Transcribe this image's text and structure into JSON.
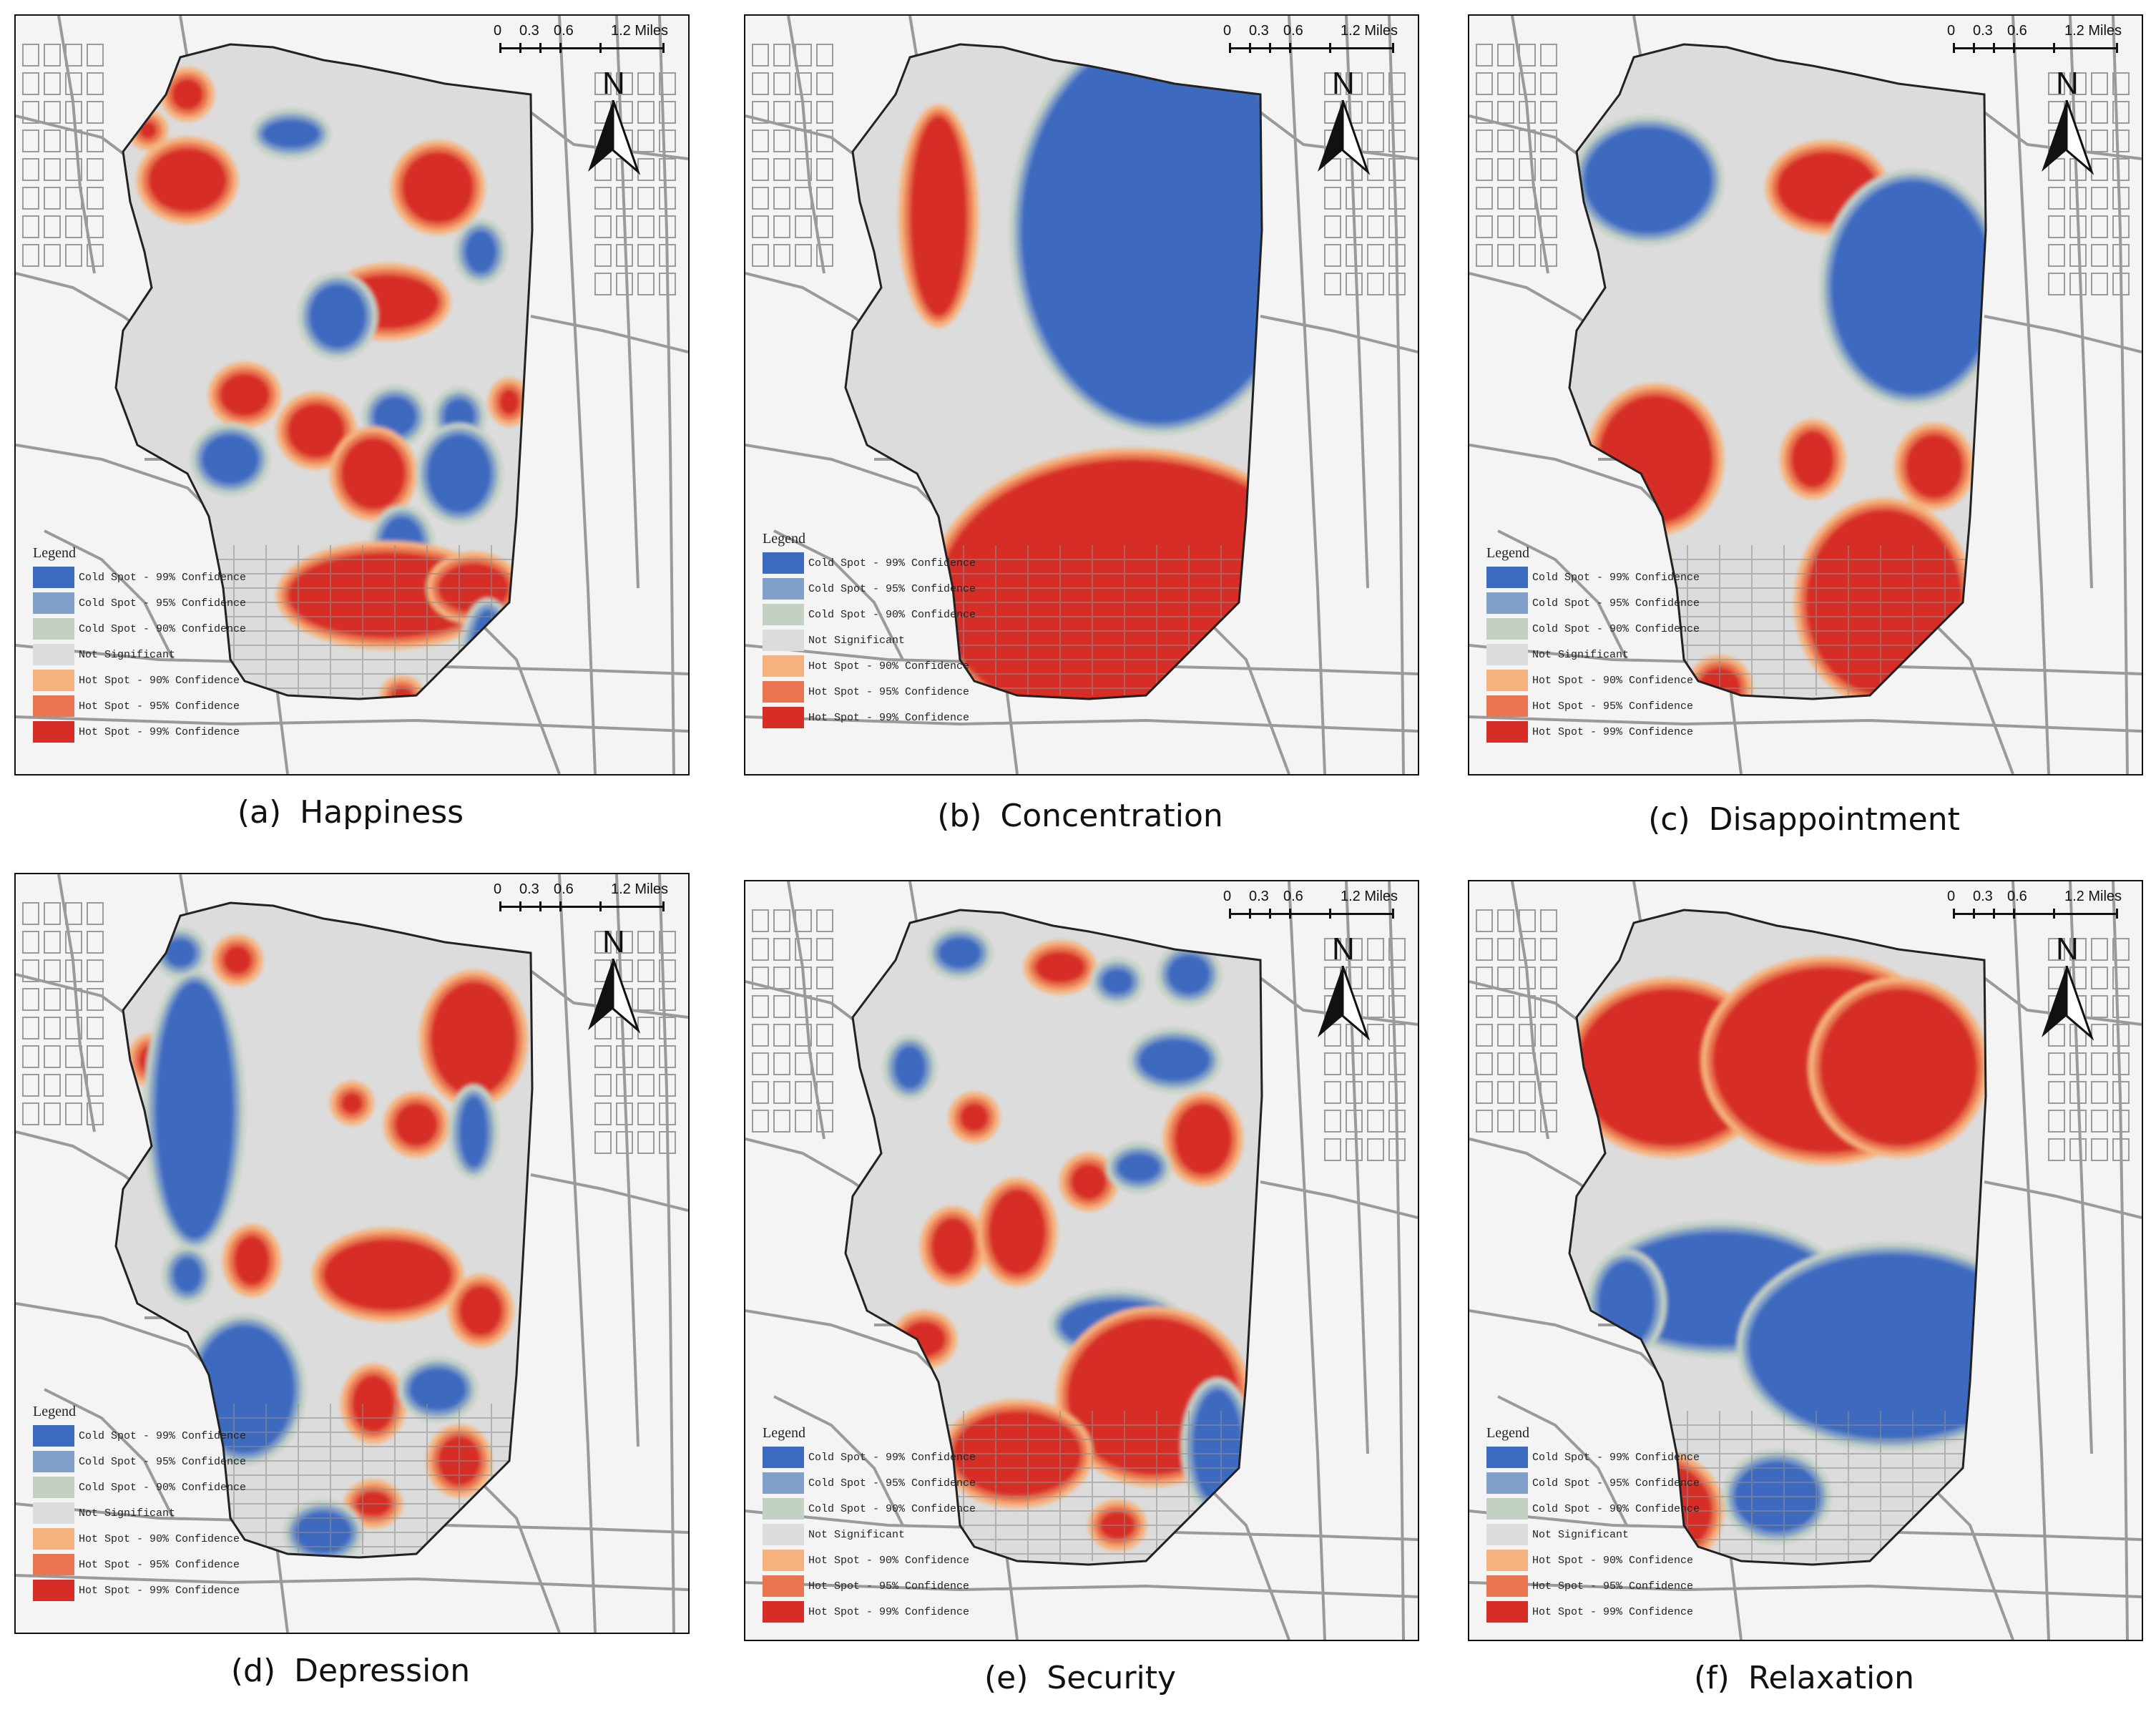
{
  "scale": {
    "ticks": [
      "0",
      "0.3",
      "0.6"
    ],
    "end_label": "1.2 Miles"
  },
  "north": "N",
  "legend": {
    "title": "Legend",
    "items": [
      {
        "label": "Cold Spot - 99% Confidence",
        "color": "#3c6bbf"
      },
      {
        "label": "Cold Spot - 95% Confidence",
        "color": "#7f9fc8"
      },
      {
        "label": "Cold Spot - 90% Confidence",
        "color": "#c3d0c4"
      },
      {
        "label": "Not Significant",
        "color": "#dcdcdc"
      },
      {
        "label": "Hot Spot - 90% Confidence",
        "color": "#f5b27e"
      },
      {
        "label": "Hot Spot - 95% Confidence",
        "color": "#ea7651"
      },
      {
        "label": "Hot Spot - 99% Confidence",
        "color": "#d62e26"
      }
    ]
  },
  "panels": [
    {
      "letter": "(a)",
      "title": "Happiness"
    },
    {
      "letter": "(b)",
      "title": "Concentration"
    },
    {
      "letter": "(c)",
      "title": "Disappointment"
    },
    {
      "letter": "(d)",
      "title": "Depression"
    },
    {
      "letter": "(e)",
      "title": "Security"
    },
    {
      "letter": "(f)",
      "title": "Relaxation"
    }
  ],
  "colors": {
    "background": "#f4f4f4",
    "road": "#9a9a9a",
    "boundary_fill": "#dcdcdc",
    "cold99": "#3c6bbf",
    "cold95": "#7f9fc8",
    "cold90": "#c3d0c4",
    "hot90": "#f5b27e",
    "hot95": "#ea7651",
    "hot99": "#d62e26"
  }
}
